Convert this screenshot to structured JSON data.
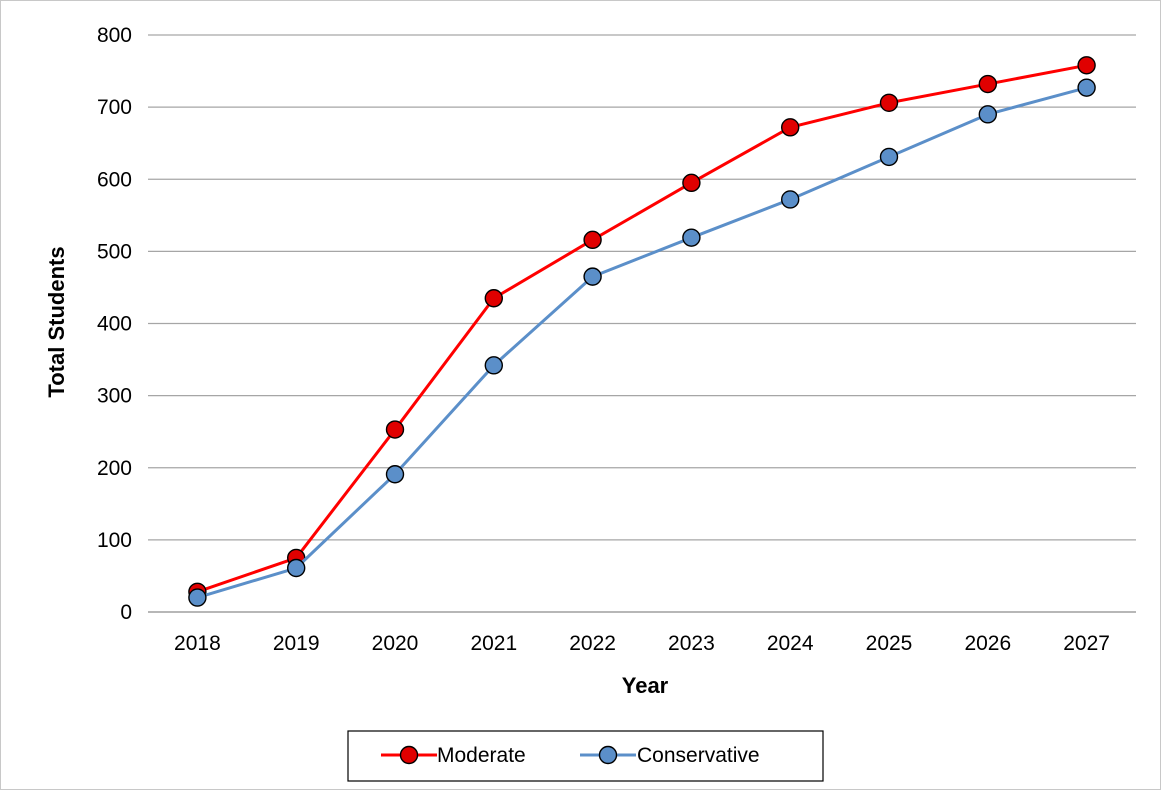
{
  "chart_data": {
    "type": "line",
    "title": "",
    "xlabel": "Year",
    "ylabel": "Total Students",
    "categories": [
      "2018",
      "2019",
      "2020",
      "2021",
      "2022",
      "2023",
      "2024",
      "2025",
      "2026",
      "2027"
    ],
    "ylim": [
      0,
      800
    ],
    "yticks": [
      "0",
      "100",
      "200",
      "300",
      "400",
      "500",
      "600",
      "700",
      "800"
    ],
    "grid": true,
    "legend_position": "bottom",
    "series": [
      {
        "name": "Moderate",
        "color": "#ff0000",
        "marker_color": "#e00000",
        "values": [
          28,
          75,
          253,
          435,
          516,
          595,
          672,
          706,
          732,
          758
        ]
      },
      {
        "name": "Conservative",
        "color": "#5b8fc9",
        "marker_color": "#5b8fc9",
        "values": [
          20,
          61,
          191,
          342,
          465,
          519,
          572,
          631,
          690,
          727
        ]
      }
    ]
  }
}
